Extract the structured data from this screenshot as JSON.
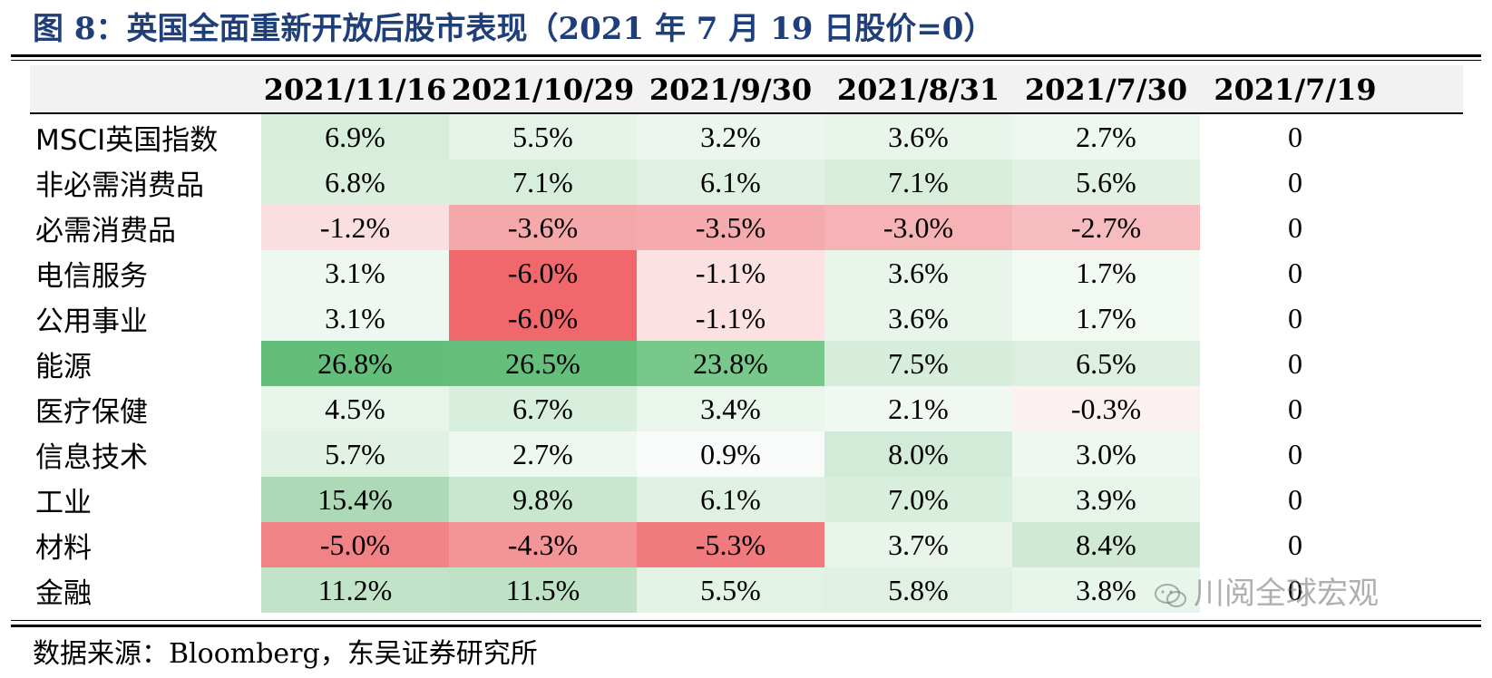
{
  "title": "图 8：英国全面重新开放后股市表现（2021 年 7 月 19 日股价=0）",
  "columns": [
    "",
    "2021/11/16",
    "2021/10/29",
    "2021/9/30",
    "2021/8/31",
    "2021/7/30",
    "2021/7/19"
  ],
  "rows": [
    {
      "label": "MSCI英国指数",
      "values": [
        "6.9%",
        "5.5%",
        "3.2%",
        "3.6%",
        "2.7%",
        "0"
      ],
      "colors": [
        "#d8eedc",
        "#e6f3e8",
        "#ecf6ee",
        "#e9f5eb",
        "#eef7f0",
        "#ffffff"
      ]
    },
    {
      "label": "非必需消费品",
      "values": [
        "6.8%",
        "7.1%",
        "6.1%",
        "7.1%",
        "5.6%",
        "0"
      ],
      "colors": [
        "#daefde",
        "#d8eedc",
        "#dff1e2",
        "#d8eedc",
        "#e1f2e4",
        "#ffffff"
      ]
    },
    {
      "label": "必需消费品",
      "values": [
        "-1.2%",
        "-3.6%",
        "-3.5%",
        "-3.0%",
        "-2.7%",
        "0"
      ],
      "colors": [
        "#fbdfe0",
        "#f4a8aa",
        "#f5abad",
        "#f5b3b5",
        "#f6bcbe",
        "#ffffff"
      ]
    },
    {
      "label": "电信服务",
      "values": [
        "3.1%",
        "-6.0%",
        "-1.1%",
        "3.6%",
        "1.7%",
        "0"
      ],
      "colors": [
        "#eef7f0",
        "#f0686c",
        "#fbe1e2",
        "#e9f5eb",
        "#f2f9f3",
        "#ffffff"
      ]
    },
    {
      "label": "公用事业",
      "values": [
        "3.1%",
        "-6.0%",
        "-1.1%",
        "3.6%",
        "1.7%",
        "0"
      ],
      "colors": [
        "#eef7f0",
        "#f0686c",
        "#fbe1e2",
        "#e9f5eb",
        "#f2f9f3",
        "#ffffff"
      ]
    },
    {
      "label": "能源",
      "values": [
        "26.8%",
        "26.5%",
        "23.8%",
        "7.5%",
        "6.5%",
        "0"
      ],
      "colors": [
        "#63be7b",
        "#65bf7c",
        "#78c78b",
        "#d5edda",
        "#dcefe0",
        "#ffffff"
      ]
    },
    {
      "label": "医疗保健",
      "values": [
        "4.5%",
        "6.7%",
        "3.4%",
        "2.1%",
        "-0.3%",
        "0"
      ],
      "colors": [
        "#e7f4e9",
        "#d9efdd",
        "#eaf5ec",
        "#f1f8f2",
        "#fbf1f1",
        "#ffffff"
      ]
    },
    {
      "label": "信息技术",
      "values": [
        "5.7%",
        "2.7%",
        "0.9%",
        "8.0%",
        "3.0%",
        "0"
      ],
      "colors": [
        "#e1f2e4",
        "#eef7f0",
        "#f8fbf9",
        "#d2ebd8",
        "#eef7f0",
        "#ffffff"
      ]
    },
    {
      "label": "工业",
      "values": [
        "15.4%",
        "9.8%",
        "6.1%",
        "7.0%",
        "3.9%",
        "0"
      ],
      "colors": [
        "#add9b7",
        "#c9e7cf",
        "#dff1e2",
        "#d9efdd",
        "#e7f4e9",
        "#ffffff"
      ]
    },
    {
      "label": "材料",
      "values": [
        "-5.0%",
        "-4.3%",
        "-5.3%",
        "3.7%",
        "8.4%",
        "0"
      ],
      "colors": [
        "#f18286",
        "#f39497",
        "#f17a7e",
        "#e9f5eb",
        "#cfe9d5",
        "#ffffff"
      ]
    },
    {
      "label": "金融",
      "values": [
        "11.2%",
        "11.5%",
        "5.5%",
        "5.8%",
        "3.8%",
        "0"
      ],
      "colors": [
        "#c1e3c8",
        "#bfe2c6",
        "#e2f2e5",
        "#e0f1e3",
        "#e8f5ea",
        "#ffffff"
      ]
    }
  ],
  "source": "数据来源：Bloomberg，东吴证券研究所",
  "watermark": "川阅全球宏观"
}
